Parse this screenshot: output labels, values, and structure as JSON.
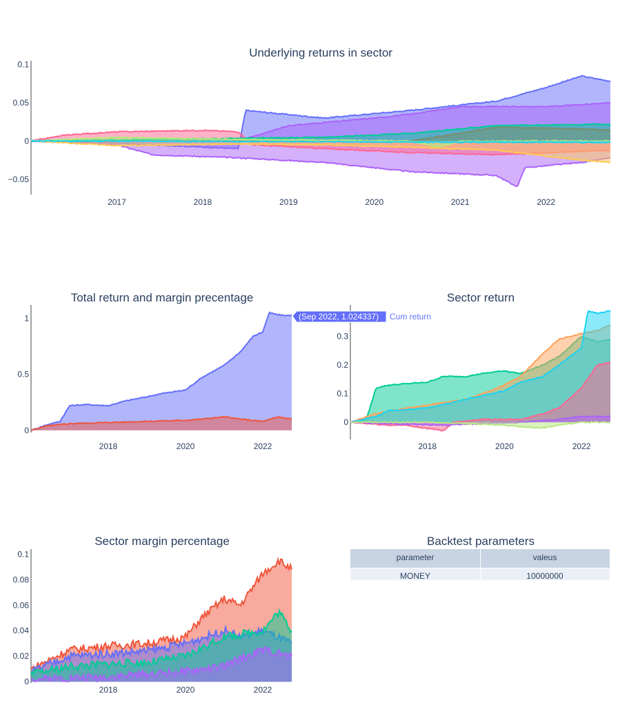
{
  "colors": {
    "plotly_blue": "#636efa",
    "plotly_red": "#EF553B",
    "plotly_green": "#00cc96",
    "plotly_purple": "#ab63fa",
    "plotly_orange": "#FFA15A",
    "plotly_cyan": "#19d3f3",
    "plotly_pink": "#FF6692",
    "plotly_lime": "#B6E880",
    "plotly_magenta": "#FF97FF",
    "plotly_yellow": "#FECB52",
    "title_color": "#2a3f5f",
    "table_header_fill": "#c8d4e3",
    "table_cell_fill": "#ebf0f8"
  },
  "chart_data": [
    {
      "id": "underlying",
      "type": "area",
      "title": "Underlying returns in sector",
      "xlabel": "",
      "ylabel": "",
      "x_ticks": [
        "2017",
        "2018",
        "2019",
        "2020",
        "2021",
        "2022"
      ],
      "y_ticks": [
        "−0.05",
        "0",
        "0.05",
        "0.1"
      ],
      "y_tick_values": [
        -0.05,
        0,
        0.05,
        0.1
      ],
      "x_range": [
        "2016-01",
        "2022-10"
      ],
      "y_range": [
        -0.07,
        0.105
      ],
      "grid": false,
      "series": [
        {
          "color": "#636efa",
          "x": [
            "2016-01",
            "2017-01",
            "2018-06",
            "2018-07",
            "2019-06",
            "2020-06",
            "2021-01",
            "2021-06",
            "2022-01",
            "2022-06",
            "2022-10"
          ],
          "values": [
            0,
            -0.003,
            -0.01,
            0.04,
            0.03,
            0.04,
            0.047,
            0.052,
            0.07,
            0.085,
            0.078
          ]
        },
        {
          "color": "#ab63fa",
          "x": [
            "2016-01",
            "2017-01",
            "2017-06",
            "2018-06",
            "2019-06",
            "2020-06",
            "2021-06",
            "2021-09",
            "2021-10",
            "2022-06",
            "2022-10"
          ],
          "values": [
            0,
            -0.005,
            -0.018,
            -0.022,
            -0.028,
            -0.04,
            -0.045,
            -0.06,
            -0.035,
            -0.028,
            -0.022
          ]
        },
        {
          "color": "#FF6692",
          "x": [
            "2016-01",
            "2016-06",
            "2017-01",
            "2018-01",
            "2018-06",
            "2018-08",
            "2019-06",
            "2020-06",
            "2021-06",
            "2022-10"
          ],
          "values": [
            0,
            0.008,
            0.012,
            0.014,
            0.012,
            -0.005,
            -0.01,
            -0.015,
            -0.018,
            -0.012
          ]
        },
        {
          "color": "#ab63fa",
          "x": [
            "2016-01",
            "2018-06",
            "2019-01",
            "2020-01",
            "2020-06",
            "2021-01",
            "2022-01",
            "2022-10"
          ],
          "values": [
            0,
            0.0,
            0.02,
            0.03,
            0.035,
            0.045,
            0.045,
            0.05
          ]
        },
        {
          "color": "#EF553B",
          "x": [
            "2016-01",
            "2018-06",
            "2020-06",
            "2021-01",
            "2021-06",
            "2022-06",
            "2022-10"
          ],
          "values": [
            0,
            0.0,
            0.0,
            0.01,
            0.018,
            0.016,
            0.014
          ]
        },
        {
          "color": "#FECB52",
          "x": [
            "2016-01",
            "2017-01",
            "2018-06",
            "2019-06",
            "2020-06",
            "2021-06",
            "2022-06",
            "2022-10"
          ],
          "values": [
            0,
            -0.006,
            -0.004,
            -0.005,
            -0.008,
            -0.012,
            -0.025,
            -0.028
          ]
        },
        {
          "color": "#00cc96",
          "x": [
            "2016-01",
            "2019-06",
            "2020-06",
            "2021-06",
            "2022-10"
          ],
          "values": [
            0,
            0.005,
            0.01,
            0.02,
            0.022
          ]
        },
        {
          "color": "#B6E880",
          "x": [
            "2016-01",
            "2017-01",
            "2018-06",
            "2020-06",
            "2020-10",
            "2021-01",
            "2022-10"
          ],
          "values": [
            0,
            0.005,
            0.002,
            0.0,
            -0.008,
            0.0,
            0.0
          ]
        },
        {
          "color": "#19d3f3",
          "x": [
            "2016-01",
            "2022-10"
          ],
          "values": [
            0,
            -0.002
          ]
        }
      ]
    },
    {
      "id": "total",
      "type": "area",
      "title": "Total return and margin precentage",
      "xlabel": "",
      "ylabel": "",
      "x_ticks": [
        "2018",
        "2020",
        "2022"
      ],
      "y_ticks": [
        "0",
        "0.5",
        "1"
      ],
      "y_tick_values": [
        0,
        0.5,
        1
      ],
      "x_range": [
        "2016-01",
        "2022-10"
      ],
      "y_range": [
        -0.02,
        1.12
      ],
      "grid": false,
      "hover": {
        "x": "Sep 2022",
        "y": "1.024337",
        "label_text": "(Sep 2022, 1.024337)",
        "series_label": "Cum return"
      },
      "series": [
        {
          "name": "Cum return",
          "color": "#636efa",
          "x": [
            "2016-01",
            "2016-06",
            "2016-10",
            "2017-01",
            "2017-06",
            "2018-01",
            "2018-06",
            "2019-01",
            "2019-06",
            "2020-01",
            "2020-06",
            "2021-01",
            "2021-06",
            "2021-10",
            "2022-01",
            "2022-03",
            "2022-06",
            "2022-09",
            "2022-10"
          ],
          "values": [
            0,
            0.05,
            0.08,
            0.22,
            0.23,
            0.22,
            0.26,
            0.3,
            0.33,
            0.36,
            0.47,
            0.58,
            0.7,
            0.84,
            0.88,
            1.05,
            1.03,
            1.024337,
            1.03
          ]
        },
        {
          "color": "#EF553B",
          "x": [
            "2016-01",
            "2016-06",
            "2017-01",
            "2018-01",
            "2019-01",
            "2020-01",
            "2020-06",
            "2021-01",
            "2021-06",
            "2022-01",
            "2022-06",
            "2022-10"
          ],
          "values": [
            0,
            0.04,
            0.06,
            0.07,
            0.08,
            0.09,
            0.1,
            0.12,
            0.1,
            0.08,
            0.12,
            0.1
          ]
        }
      ]
    },
    {
      "id": "sector",
      "type": "area",
      "title": "Sector return",
      "xlabel": "",
      "ylabel": "",
      "x_ticks": [
        "2018",
        "2020",
        "2022"
      ],
      "y_ticks": [
        "0",
        "0.1",
        "0.2",
        "0.3"
      ],
      "y_tick_values": [
        0,
        0.1,
        0.2,
        0.3
      ],
      "x_range": [
        "2016-01",
        "2022-10"
      ],
      "y_range": [
        -0.06,
        0.41
      ],
      "grid": false,
      "series": [
        {
          "color": "#00cc96",
          "x": [
            "2016-01",
            "2016-06",
            "2016-09",
            "2017-01",
            "2018-01",
            "2018-06",
            "2019-01",
            "2019-06",
            "2020-01",
            "2020-06",
            "2021-01",
            "2021-06",
            "2022-01",
            "2022-06",
            "2022-10"
          ],
          "values": [
            0,
            0.01,
            0.12,
            0.13,
            0.14,
            0.16,
            0.16,
            0.17,
            0.18,
            0.17,
            0.2,
            0.23,
            0.3,
            0.28,
            0.29
          ]
        },
        {
          "color": "#FFA15A",
          "x": [
            "2016-01",
            "2016-09",
            "2017-01",
            "2018-01",
            "2019-01",
            "2019-06",
            "2020-01",
            "2020-06",
            "2021-01",
            "2021-06",
            "2022-01",
            "2022-06",
            "2022-10"
          ],
          "values": [
            0,
            0.03,
            0.04,
            0.06,
            0.08,
            0.1,
            0.13,
            0.16,
            0.24,
            0.29,
            0.31,
            0.32,
            0.34
          ]
        },
        {
          "color": "#19d3f3",
          "x": [
            "2016-01",
            "2016-09",
            "2017-01",
            "2018-01",
            "2019-01",
            "2020-01",
            "2020-06",
            "2021-01",
            "2021-06",
            "2022-01",
            "2022-03",
            "2022-06",
            "2022-10"
          ],
          "values": [
            0,
            0.02,
            0.04,
            0.05,
            0.08,
            0.11,
            0.14,
            0.16,
            0.2,
            0.26,
            0.39,
            0.38,
            0.39
          ]
        },
        {
          "color": "#FF6692",
          "x": [
            "2016-01",
            "2017-01",
            "2017-06",
            "2018-06",
            "2018-09",
            "2019-06",
            "2020-06",
            "2021-01",
            "2021-06",
            "2022-01",
            "2022-06",
            "2022-10"
          ],
          "values": [
            0,
            -0.01,
            -0.01,
            -0.03,
            0.0,
            0.01,
            0.01,
            0.03,
            0.05,
            0.12,
            0.2,
            0.21
          ]
        },
        {
          "color": "#ab63fa",
          "x": [
            "2016-01",
            "2017-01",
            "2018-06",
            "2019-06",
            "2020-06",
            "2021-06",
            "2022-01",
            "2022-10"
          ],
          "values": [
            0,
            -0.005,
            -0.01,
            -0.005,
            0.0,
            0.01,
            0.02,
            0.02
          ]
        },
        {
          "color": "#B6E880",
          "x": [
            "2016-01",
            "2018-01",
            "2020-01",
            "2020-06",
            "2021-01",
            "2021-06",
            "2022-01",
            "2022-10"
          ],
          "values": [
            0,
            0.0,
            -0.01,
            -0.015,
            -0.02,
            -0.01,
            0.0,
            0.0
          ]
        }
      ]
    },
    {
      "id": "margin",
      "type": "area",
      "title": "Sector margin percentage",
      "xlabel": "",
      "ylabel": "",
      "x_ticks": [
        "2018",
        "2020",
        "2022"
      ],
      "y_ticks": [
        "0",
        "0.02",
        "0.04",
        "0.06",
        "0.08",
        "0.1"
      ],
      "y_tick_values": [
        0,
        0.02,
        0.04,
        0.06,
        0.08,
        0.1
      ],
      "x_range": [
        "2016-01",
        "2022-10"
      ],
      "y_range": [
        -0.001,
        0.104
      ],
      "grid": false,
      "series": [
        {
          "color": "#EF553B",
          "x": [
            "2016-01",
            "2017-01",
            "2018-01",
            "2019-01",
            "2020-01",
            "2020-06",
            "2021-01",
            "2021-06",
            "2022-01",
            "2022-06",
            "2022-10"
          ],
          "values": [
            0.01,
            0.025,
            0.028,
            0.03,
            0.035,
            0.05,
            0.065,
            0.06,
            0.085,
            0.095,
            0.088
          ]
        },
        {
          "color": "#636efa",
          "x": [
            "2016-01",
            "2017-01",
            "2018-01",
            "2019-01",
            "2020-01",
            "2021-01",
            "2021-06",
            "2022-01",
            "2022-10"
          ],
          "values": [
            0.008,
            0.02,
            0.022,
            0.024,
            0.03,
            0.04,
            0.035,
            0.04,
            0.03
          ]
        },
        {
          "color": "#00cc96",
          "x": [
            "2016-01",
            "2017-01",
            "2018-01",
            "2019-01",
            "2020-01",
            "2021-01",
            "2022-01",
            "2022-06",
            "2022-10"
          ],
          "values": [
            0.006,
            0.012,
            0.014,
            0.015,
            0.02,
            0.035,
            0.04,
            0.055,
            0.04
          ]
        },
        {
          "color": "#ab63fa",
          "x": [
            "2016-01",
            "2017-01",
            "2018-01",
            "2019-01",
            "2020-01",
            "2021-01",
            "2021-06",
            "2022-01",
            "2022-10"
          ],
          "values": [
            0.002,
            0.003,
            0.004,
            0.006,
            0.008,
            0.012,
            0.018,
            0.025,
            0.02
          ]
        }
      ]
    }
  ],
  "table": {
    "title": "Backtest parameters",
    "header": [
      "parameter",
      "valeus"
    ],
    "rows": [
      [
        "MONEY",
        "10000000"
      ]
    ]
  }
}
